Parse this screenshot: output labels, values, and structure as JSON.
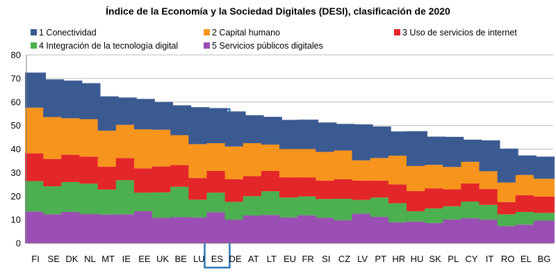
{
  "chart_data": {
    "type": "bar",
    "stacked": true,
    "title": "Índice de la Economía y la Sociedad Digitales (DESI), clasificación de 2020",
    "xlabel": "",
    "ylabel": "",
    "ylim": [
      0,
      80
    ],
    "yticks": [
      0,
      10,
      20,
      30,
      40,
      50,
      60,
      70,
      80
    ],
    "grid": true,
    "legend_position": "top",
    "highlighted_category": "ES",
    "categories": [
      "FI",
      "SE",
      "DK",
      "NL",
      "MT",
      "IE",
      "EE",
      "UK",
      "BE",
      "LU",
      "ES",
      "DE",
      "AT",
      "LT",
      "EU",
      "FR",
      "SI",
      "CZ",
      "LV",
      "PT",
      "HR",
      "HU",
      "SK",
      "PL",
      "CY",
      "IT",
      "RO",
      "EL",
      "BG"
    ],
    "series": [
      {
        "name": "5 Servicios públicos digitales",
        "color": "#9b4fb4",
        "values": [
          13.5,
          12.3,
          13.3,
          12.4,
          12.2,
          12.3,
          13.6,
          10.8,
          11.1,
          11.0,
          13.2,
          10.0,
          11.8,
          12.0,
          11.0,
          11.9,
          10.8,
          9.8,
          12.6,
          11.2,
          8.9,
          9.2,
          8.6,
          10.1,
          10.6,
          10.0,
          7.3,
          7.9,
          9.6
        ]
      },
      {
        "name": "4 Integración de la tecnología digital",
        "color": "#4caf50",
        "values": [
          12.9,
          11.9,
          12.7,
          12.9,
          10.6,
          14.5,
          7.9,
          10.8,
          12.9,
          7.5,
          8.3,
          7.6,
          8.2,
          10.1,
          8.4,
          8.0,
          8.0,
          9.1,
          5.8,
          8.2,
          8.1,
          4.4,
          6.2,
          5.6,
          7.1,
          6.3,
          5.0,
          5.4,
          3.3
        ]
      },
      {
        "name": "3 Uso de servicios de internet",
        "color": "#e3262a",
        "values": [
          11.8,
          11.6,
          11.6,
          11.5,
          9.7,
          9.4,
          10.3,
          11.0,
          9.2,
          9.2,
          9.2,
          9.6,
          8.5,
          8.6,
          8.6,
          8.1,
          7.8,
          8.3,
          8.2,
          7.2,
          8.0,
          8.6,
          8.5,
          7.2,
          7.7,
          6.7,
          5.2,
          7.1,
          6.9
        ]
      },
      {
        "name": "2 Capital humano",
        "color": "#f7941d",
        "values": [
          19.4,
          17.8,
          15.5,
          15.9,
          15.3,
          14.1,
          16.6,
          15.6,
          12.7,
          14.4,
          11.8,
          13.9,
          14.0,
          11.2,
          12.0,
          12.0,
          12.2,
          12.2,
          8.6,
          9.6,
          12.2,
          10.6,
          10.0,
          9.5,
          9.2,
          7.6,
          8.3,
          8.6,
          7.6
        ]
      },
      {
        "name": "1 Conectividad",
        "color": "#3b5a91",
        "values": [
          14.9,
          16.0,
          16.0,
          15.3,
          14.6,
          11.6,
          12.9,
          11.8,
          12.7,
          15.7,
          14.9,
          14.9,
          11.9,
          11.8,
          12.4,
          12.5,
          12.5,
          11.3,
          15.3,
          13.4,
          10.3,
          14.8,
          12.0,
          12.8,
          9.4,
          13.1,
          14.4,
          8.3,
          9.4
        ]
      }
    ]
  }
}
